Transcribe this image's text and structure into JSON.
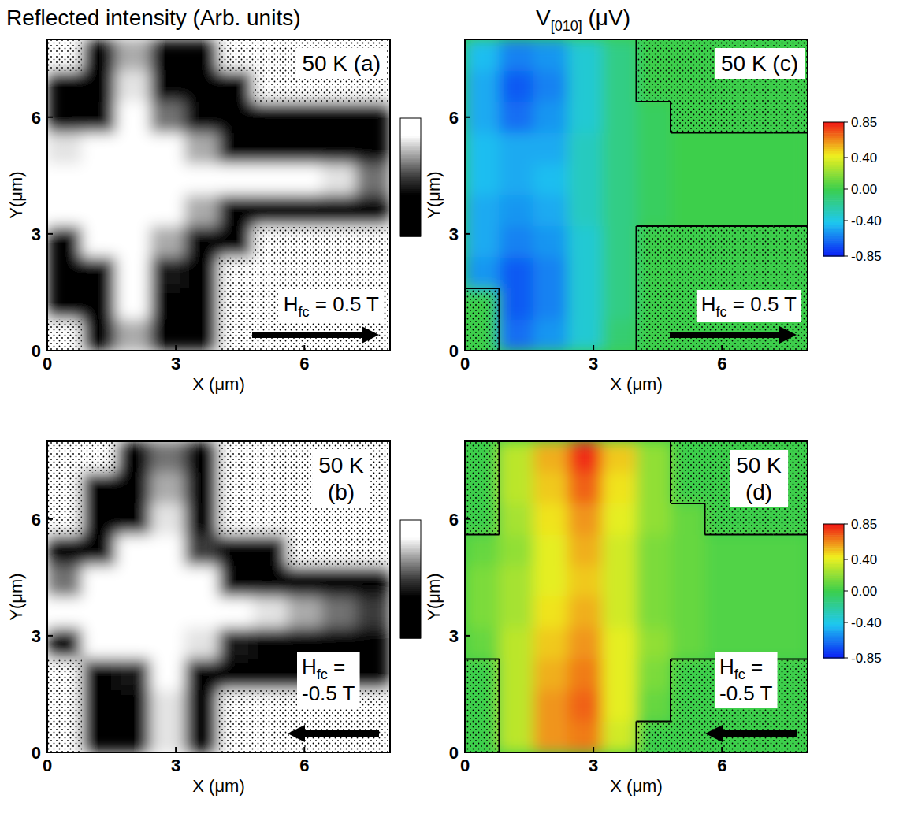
{
  "header": {
    "left": "Reflected intensity (Arb. units)",
    "right": {
      "text": "V",
      "subscript": "[010]",
      "text_after": " (μV)"
    }
  },
  "chart_data": [
    {
      "type": "heatmap",
      "color": "gray",
      "xlabel": "X (μm)",
      "ylabel": "Y(μm)",
      "xlim": [
        0,
        8
      ],
      "ylim": [
        0,
        8
      ],
      "xticks": [
        0,
        3,
        6
      ],
      "yticks": [
        0,
        3,
        6
      ],
      "x": [
        0.4,
        1.2,
        2,
        2.8,
        3.6,
        4.4,
        5.2,
        6,
        6.8,
        7.6
      ],
      "y": [
        7.6,
        6.8,
        6,
        5.2,
        4.4,
        3.6,
        2.8,
        2,
        1.2,
        0.4
      ],
      "cells": [
        [
          null,
          0,
          0.7,
          0.1,
          0.05,
          null,
          null,
          null,
          null,
          null
        ],
        [
          0,
          0.05,
          0.8,
          0.2,
          0,
          0,
          null,
          null,
          null,
          null
        ],
        [
          0,
          0.3,
          0.9,
          0.6,
          0.1,
          0,
          0,
          0,
          0,
          0
        ],
        [
          0.8,
          1,
          1,
          1,
          0.7,
          0.3,
          0.3,
          0.2,
          0.15,
          0.1
        ],
        [
          1,
          1,
          1,
          1,
          1,
          0.95,
          0.9,
          0.85,
          0.8,
          0.6
        ],
        [
          1,
          1,
          1,
          1,
          0.7,
          0.2,
          0.1,
          0.05,
          0,
          0
        ],
        [
          0.3,
          0.9,
          1,
          0.7,
          0.1,
          0,
          null,
          null,
          null,
          null
        ],
        [
          0,
          0.2,
          0.9,
          0.4,
          0,
          null,
          null,
          null,
          null,
          null
        ],
        [
          0,
          0.05,
          0.85,
          0.3,
          0,
          null,
          null,
          null,
          null,
          null
        ],
        [
          null,
          0,
          0.7,
          0.2,
          0,
          null,
          null,
          null,
          null,
          null
        ]
      ],
      "colorbar": {
        "range": [
          0,
          1
        ]
      },
      "temperature": "50 K",
      "panel": "(a)",
      "field": {
        "symbol": "H",
        "subscript": "fc",
        "text": "= 0.5 T",
        "value": 0.5
      }
    },
    {
      "type": "heatmap",
      "color": "gray",
      "xlabel": "X (μm)",
      "ylabel": "Y(μm)",
      "xlim": [
        0,
        8
      ],
      "ylim": [
        0,
        8
      ],
      "xticks": [
        0,
        3,
        6
      ],
      "yticks": [
        0,
        3,
        6
      ],
      "x": [
        0.4,
        1.2,
        2,
        2.8,
        3.6,
        4.4,
        5.2,
        6,
        6.8,
        7.6
      ],
      "y": [
        7.6,
        6.8,
        6,
        5.2,
        4.4,
        3.6,
        2.8,
        2,
        1.2,
        0.4
      ],
      "cells": [
        [
          null,
          null,
          0,
          0.6,
          0,
          null,
          null,
          null,
          null,
          null
        ],
        [
          null,
          0,
          0.1,
          0.7,
          0,
          null,
          null,
          null,
          null,
          null
        ],
        [
          null,
          0,
          0.3,
          0.8,
          0.1,
          null,
          null,
          null,
          null,
          null
        ],
        [
          0,
          0.2,
          0.9,
          1,
          0.5,
          0,
          0,
          null,
          null,
          null
        ],
        [
          0.6,
          1,
          1,
          1,
          0.9,
          0.3,
          0,
          0,
          0,
          0
        ],
        [
          1,
          1,
          1,
          1,
          1,
          0.9,
          0.8,
          0.7,
          0.6,
          0.5
        ],
        [
          0.3,
          0.9,
          1,
          1,
          0.8,
          0.4,
          0.3,
          0.2,
          0.1,
          0.1
        ],
        [
          null,
          0,
          0.4,
          0.9,
          0.2,
          0,
          0,
          0,
          0,
          0
        ],
        [
          null,
          0,
          0.1,
          0.8,
          0.1,
          null,
          null,
          null,
          null,
          null
        ],
        [
          null,
          0,
          0.05,
          0.8,
          0,
          null,
          null,
          null,
          null,
          null
        ]
      ],
      "colorbar": {
        "range": [
          0,
          1
        ]
      },
      "temperature": "50 K",
      "panel": "(b)",
      "field": {
        "symbol": "H",
        "subscript": "fc",
        "text": "= -0.5 T",
        "value": -0.5
      }
    },
    {
      "type": "heatmap",
      "color": "jet",
      "xlabel": "X (μm)",
      "ylabel": "Y(μm)",
      "xlim": [
        0,
        8
      ],
      "ylim": [
        0,
        8
      ],
      "xticks": [
        0,
        3,
        6
      ],
      "yticks": [
        0,
        3,
        6
      ],
      "x": [
        0.4,
        1.2,
        2,
        2.8,
        3.6,
        4.4,
        5.2,
        6,
        6.8,
        7.6
      ],
      "y": [
        7.6,
        6.8,
        6,
        5.2,
        4.4,
        3.6,
        2.8,
        2,
        1.2,
        0.4
      ],
      "cells": [
        [
          -0.45,
          -0.6,
          -0.55,
          -0.35,
          -0.15,
          null,
          null,
          null,
          null,
          null
        ],
        [
          -0.5,
          -0.7,
          -0.6,
          -0.35,
          -0.15,
          null,
          null,
          null,
          null,
          null
        ],
        [
          -0.5,
          -0.65,
          -0.55,
          -0.35,
          -0.15,
          -0.05,
          null,
          null,
          null,
          null
        ],
        [
          -0.45,
          -0.5,
          -0.5,
          -0.3,
          -0.15,
          -0.05,
          0,
          0,
          0,
          0
        ],
        [
          -0.45,
          -0.5,
          -0.45,
          -0.3,
          -0.15,
          -0.05,
          0,
          0,
          0,
          0
        ],
        [
          -0.5,
          -0.55,
          -0.5,
          -0.3,
          -0.15,
          -0.05,
          0,
          0,
          0,
          0
        ],
        [
          -0.5,
          -0.6,
          -0.55,
          -0.35,
          -0.15,
          null,
          null,
          null,
          null,
          null
        ],
        [
          -0.55,
          -0.7,
          -0.6,
          -0.35,
          -0.15,
          null,
          null,
          null,
          null,
          null
        ],
        [
          null,
          -0.7,
          -0.6,
          -0.35,
          -0.15,
          null,
          null,
          null,
          null,
          null
        ],
        [
          null,
          -0.65,
          -0.55,
          -0.35,
          -0.1,
          null,
          null,
          null,
          null,
          null
        ]
      ],
      "colorbar": {
        "range": [
          -0.85,
          0.85
        ],
        "ticks": [
          0.85,
          {
            "value": 0.4,
            "label": "0.40"
          },
          {
            "value": 0,
            "label": "0.00"
          },
          {
            "value": -0.4,
            "label": "-0.40"
          },
          -0.85
        ]
      },
      "temperature": "50 K",
      "panel": "(c)",
      "field": {
        "symbol": "H",
        "subscript": "fc",
        "text": "= 0.5 T",
        "value": 0.5
      }
    },
    {
      "type": "heatmap",
      "color": "jet",
      "xlabel": "X (μm)",
      "ylabel": "Y(μm)",
      "xlim": [
        0,
        8
      ],
      "ylim": [
        0,
        8
      ],
      "xticks": [
        0,
        3,
        6
      ],
      "yticks": [
        0,
        3,
        6
      ],
      "x": [
        0.4,
        1.2,
        2,
        2.8,
        3.6,
        4.4,
        5.2,
        6,
        6.8,
        7.6
      ],
      "y": [
        7.6,
        6.8,
        6,
        5.2,
        4.4,
        3.6,
        2.8,
        2,
        1.2,
        0.4
      ],
      "cells": [
        [
          null,
          0.3,
          0.55,
          0.8,
          0.5,
          0.2,
          null,
          null,
          null,
          null
        ],
        [
          null,
          0.3,
          0.5,
          0.7,
          0.45,
          0.2,
          null,
          null,
          null,
          null
        ],
        [
          null,
          0.25,
          0.45,
          0.6,
          0.4,
          0.2,
          0.1,
          null,
          null,
          null
        ],
        [
          0.1,
          0.2,
          0.4,
          0.55,
          0.35,
          0.15,
          0.1,
          0.05,
          0.05,
          0.05
        ],
        [
          0.15,
          0.25,
          0.4,
          0.5,
          0.35,
          0.15,
          0.1,
          0.05,
          0.05,
          0.05
        ],
        [
          0.15,
          0.25,
          0.45,
          0.55,
          0.35,
          0.15,
          0.1,
          0.05,
          0.05,
          0.05
        ],
        [
          0.1,
          0.3,
          0.5,
          0.6,
          0.4,
          0.2,
          0.1,
          0.05,
          0.05,
          0.05
        ],
        [
          null,
          0.3,
          0.55,
          0.65,
          0.4,
          0.15,
          null,
          null,
          null,
          null
        ],
        [
          null,
          0.3,
          0.6,
          0.7,
          0.4,
          0.1,
          null,
          null,
          null,
          null
        ],
        [
          null,
          0.3,
          0.6,
          0.65,
          0.35,
          null,
          null,
          null,
          null,
          null
        ]
      ],
      "colorbar": {
        "range": [
          -0.85,
          0.85
        ],
        "ticks": [
          0.85,
          {
            "value": 0.4,
            "label": "0.40"
          },
          {
            "value": 0,
            "label": "0.00"
          },
          {
            "value": -0.4,
            "label": "-0.40"
          },
          -0.85
        ]
      },
      "temperature": "50 K",
      "panel": "(d)",
      "field": {
        "symbol": "H",
        "subscript": "fc",
        "text": "= -0.5 T",
        "value": -0.5
      }
    }
  ]
}
